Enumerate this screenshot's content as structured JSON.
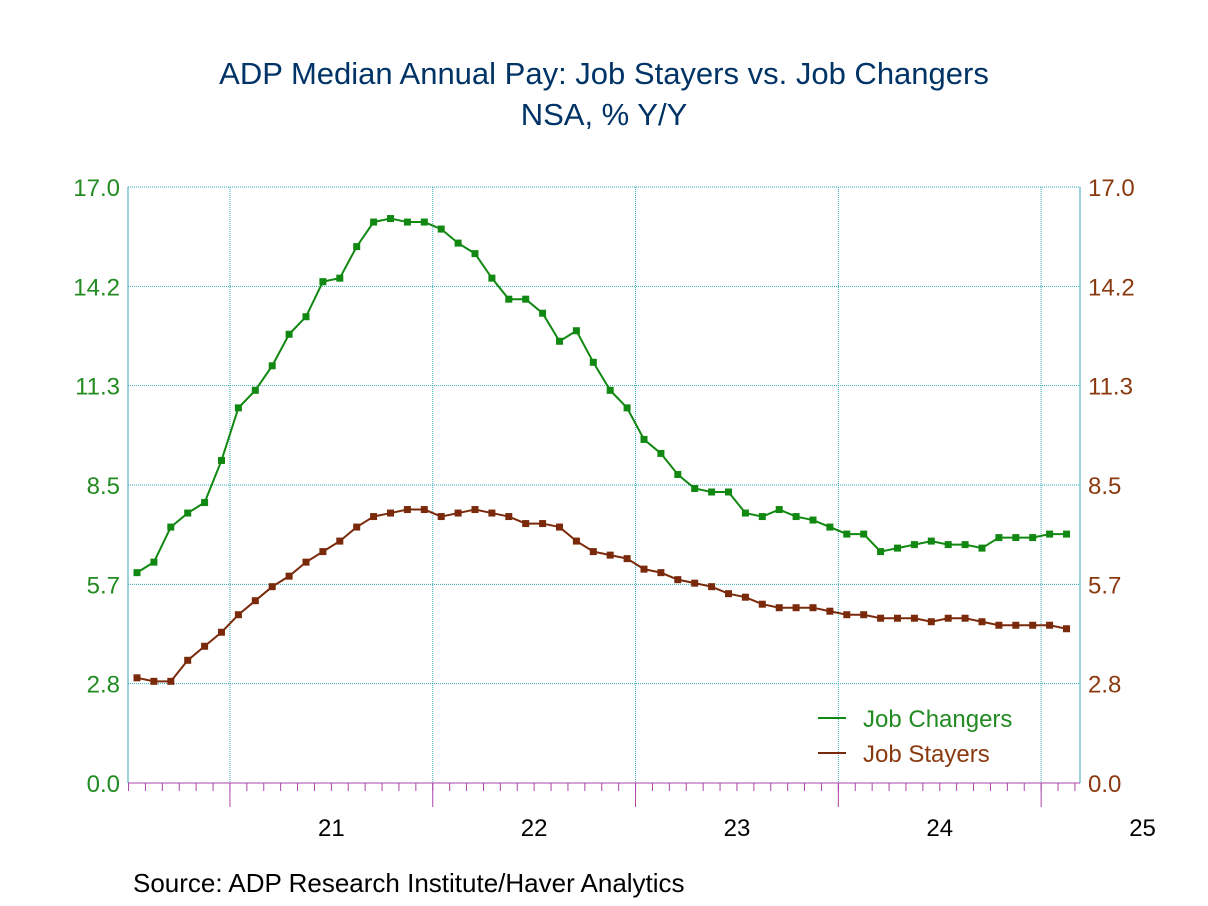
{
  "chart_data": {
    "type": "line",
    "title": "ADP Median Annual Pay: Job Stayers vs. Job Changers",
    "subtitle": "NSA, % Y/Y",
    "source": "Source:  ADP Research Institute/Haver Analytics",
    "x_start": "2020-07",
    "xtick_labels": [
      "21",
      "22",
      "23",
      "24",
      "25"
    ],
    "ylim": [
      0.0,
      17.0
    ],
    "ytick_labels": [
      "0.0",
      "2.8",
      "5.7",
      "8.5",
      "11.3",
      "14.2",
      "17.0"
    ],
    "grid": true,
    "legend_position": "bottom-right",
    "colors": {
      "title": "#003366",
      "left_axis": "#228b22",
      "right_axis": "#8b3a10",
      "grid": "#33aabb",
      "xtick_minor": "#aa44aa"
    },
    "series": [
      {
        "name": "Job Changers",
        "color": "#118811",
        "marker": "square",
        "values": [
          6.0,
          6.3,
          7.3,
          7.7,
          8.0,
          9.2,
          10.7,
          11.2,
          11.9,
          12.8,
          13.3,
          14.3,
          14.4,
          15.3,
          16.0,
          16.1,
          16.0,
          16.0,
          15.8,
          15.4,
          15.1,
          14.4,
          13.8,
          13.8,
          13.4,
          12.6,
          12.9,
          12.0,
          11.2,
          10.7,
          9.8,
          9.4,
          8.8,
          8.4,
          8.3,
          8.3,
          7.7,
          7.6,
          7.8,
          7.6,
          7.5,
          7.3,
          7.1,
          7.1,
          6.6,
          6.7,
          6.8,
          6.9,
          6.8,
          6.8,
          6.7,
          7.0,
          7.0,
          7.0,
          7.1,
          7.1
        ]
      },
      {
        "name": "Job Stayers",
        "color": "#7a2a0a",
        "marker": "square",
        "values": [
          3.0,
          2.9,
          2.9,
          3.5,
          3.9,
          4.3,
          4.8,
          5.2,
          5.6,
          5.9,
          6.3,
          6.6,
          6.9,
          7.3,
          7.6,
          7.7,
          7.8,
          7.8,
          7.6,
          7.7,
          7.8,
          7.7,
          7.6,
          7.4,
          7.4,
          7.3,
          6.9,
          6.6,
          6.5,
          6.4,
          6.1,
          6.0,
          5.8,
          5.7,
          5.6,
          5.4,
          5.3,
          5.1,
          5.0,
          5.0,
          5.0,
          4.9,
          4.8,
          4.8,
          4.7,
          4.7,
          4.7,
          4.6,
          4.7,
          4.7,
          4.6,
          4.5,
          4.5,
          4.5,
          4.5,
          4.4
        ]
      }
    ]
  }
}
